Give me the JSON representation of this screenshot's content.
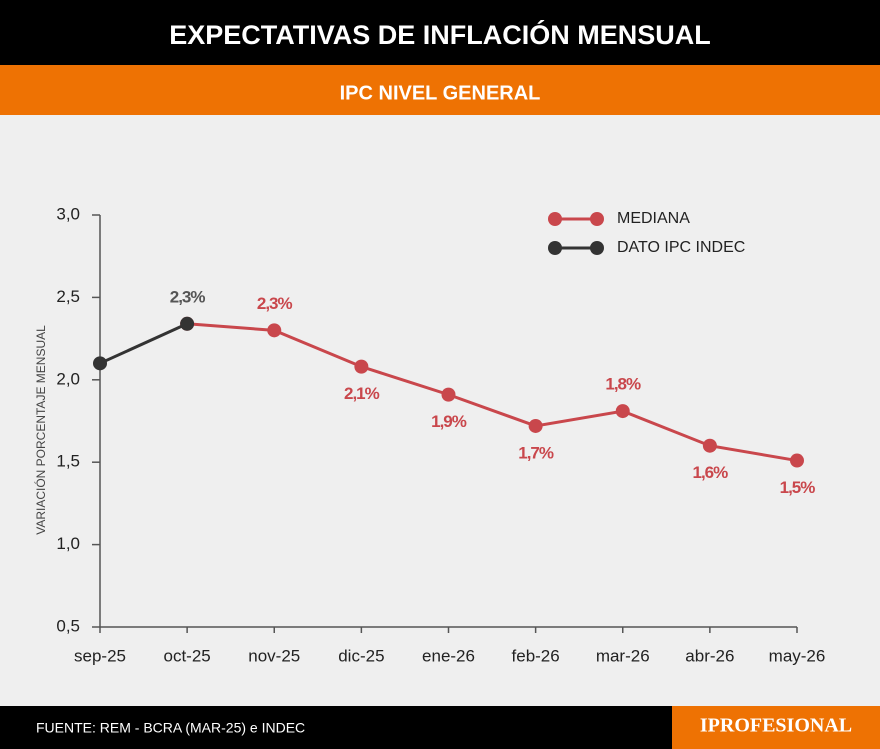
{
  "chart_data": {
    "type": "line",
    "title": "EXPECTATIVAS DE INFLACIÓN MENSUAL",
    "subtitle": "IPC NIVEL GENERAL",
    "ylabel": "VARIACIÓN  PORCENTAJE  MENSUAL",
    "categories": [
      "sep-25",
      "oct-25",
      "nov-25",
      "dic-25",
      "ene-26",
      "feb-26",
      "mar-26",
      "abr-26",
      "may-26"
    ],
    "series": [
      {
        "name": "MEDIANA",
        "color": "#c9474c",
        "values": [
          null,
          2.34,
          2.3,
          2.08,
          1.91,
          1.72,
          1.81,
          1.6,
          1.51
        ],
        "value_labels": [
          null,
          null,
          "2,3%",
          "2,1%",
          "1,9%",
          "1,7%",
          "1,8%",
          "1,6%",
          "1,5%"
        ]
      },
      {
        "name": "DATO IPC INDEC",
        "color": "#333333",
        "values": [
          2.1,
          2.34,
          null,
          null,
          null,
          null,
          null,
          null,
          null
        ],
        "value_labels": [
          null,
          "2,3%",
          null,
          null,
          null,
          null,
          null,
          null,
          null
        ]
      }
    ],
    "ylim": [
      0.5,
      3.0
    ],
    "yticks": [
      {
        "value": 0.5,
        "label": "0,5"
      },
      {
        "value": 1.0,
        "label": "1,0"
      },
      {
        "value": 1.5,
        "label": "1,5"
      },
      {
        "value": 2.0,
        "label": "2,0"
      },
      {
        "value": 2.5,
        "label": "2,5"
      },
      {
        "value": 3.0,
        "label": "3,0"
      }
    ],
    "legend": "upper right",
    "source": "FUENTE: REM - BCRA (MAR-25) e INDEC",
    "brand": "IPROFESIONAL"
  }
}
